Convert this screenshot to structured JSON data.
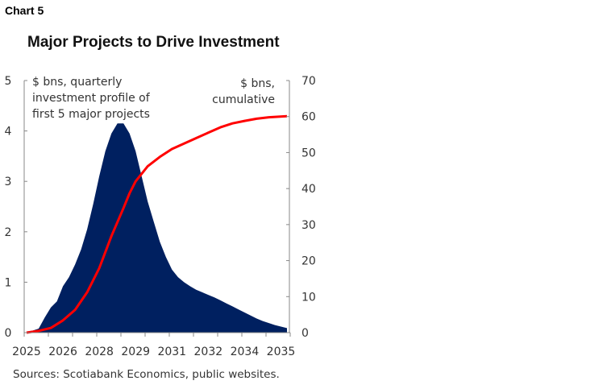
{
  "header": "Chart 5",
  "source": "Sources: Scotiabank Economics, public websites.",
  "chart_data": {
    "type": "area+line",
    "title": "Major Projects to Drive Investment",
    "x_tick_labels": [
      "2025",
      "2026",
      "2028",
      "2029",
      "2031",
      "2032",
      "2034",
      "2035"
    ],
    "x_tick_values": [
      2025,
      2026.5,
      2028,
      2029.5,
      2031,
      2032.5,
      2034,
      2035.5
    ],
    "xlim": [
      2024.9,
      2035.85
    ],
    "left_axis": {
      "label": "$ bns, quarterly investment profile of first 5 major projects",
      "label_lines": [
        "$ bns, quarterly",
        "investment profile of",
        "first 5 major projects"
      ],
      "ylim": [
        0,
        5
      ],
      "ticks": [
        "0",
        "1",
        "2",
        "3",
        "4",
        "5"
      ]
    },
    "right_axis": {
      "label": "$ bns, cumulative",
      "label_lines": [
        "$ bns,",
        "cumulative"
      ],
      "ylim": [
        0,
        70
      ],
      "ticks": [
        "0",
        "10",
        "20",
        "30",
        "40",
        "50",
        "60",
        "70"
      ]
    },
    "grid": false,
    "series": [
      {
        "type": "area",
        "axis": "left",
        "color": "#002060",
        "x": [
          2025,
          2025.25,
          2025.5,
          2025.75,
          2026,
          2026.25,
          2026.5,
          2026.75,
          2027,
          2027.25,
          2027.5,
          2027.75,
          2028,
          2028.25,
          2028.5,
          2028.75,
          2029,
          2029.25,
          2029.5,
          2029.75,
          2030,
          2030.25,
          2030.5,
          2030.75,
          2031,
          2031.25,
          2031.5,
          2031.75,
          2032,
          2032.25,
          2032.5,
          2032.75,
          2033,
          2033.25,
          2033.5,
          2033.75,
          2034,
          2034.25,
          2034.5,
          2034.75,
          2035,
          2035.25,
          2035.5,
          2035.75
        ],
        "values": [
          0.02,
          0.04,
          0.08,
          0.3,
          0.5,
          0.62,
          0.92,
          1.1,
          1.35,
          1.65,
          2.05,
          2.55,
          3.1,
          3.6,
          3.95,
          4.15,
          4.15,
          3.95,
          3.6,
          3.1,
          2.6,
          2.2,
          1.8,
          1.5,
          1.25,
          1.1,
          1.0,
          0.92,
          0.85,
          0.8,
          0.75,
          0.7,
          0.64,
          0.58,
          0.52,
          0.46,
          0.4,
          0.34,
          0.28,
          0.23,
          0.19,
          0.15,
          0.12,
          0.09
        ]
      },
      {
        "type": "line",
        "axis": "right",
        "color": "#ff0000",
        "x": [
          2025,
          2025.5,
          2026,
          2026.5,
          2027,
          2027.5,
          2028,
          2028.5,
          2029,
          2029.25,
          2029.5,
          2030,
          2030.5,
          2031,
          2031.5,
          2032,
          2032.5,
          2033,
          2033.5,
          2034,
          2034.5,
          2035,
          2035.75
        ],
        "values": [
          0,
          0.5,
          1.3,
          3.4,
          6.3,
          11.2,
          17.9,
          26.8,
          34.6,
          38.7,
          42,
          46.2,
          48.8,
          51,
          52.5,
          54,
          55.5,
          57,
          58.1,
          58.8,
          59.4,
          59.8,
          60.1
        ]
      }
    ]
  }
}
